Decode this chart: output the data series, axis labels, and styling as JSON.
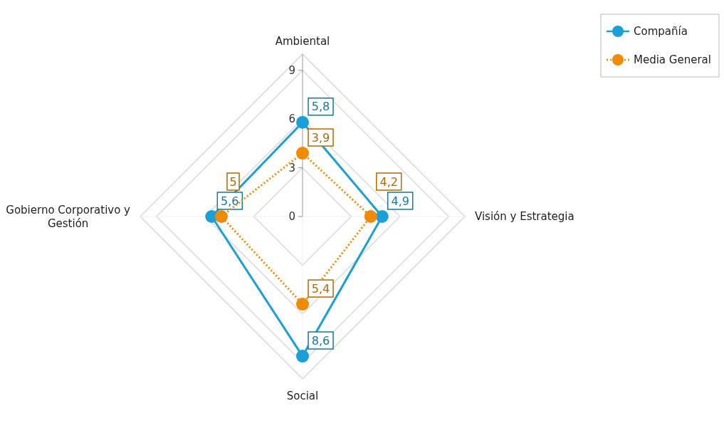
{
  "chart_data": {
    "type": "radar",
    "categories": [
      "Ambiental",
      "Visión y Estrategia",
      "Social",
      "Gobierno Corporativo y Gestión"
    ],
    "series": [
      {
        "name": "Compañía",
        "color": "#1a9fd9",
        "values": [
          5.8,
          4.9,
          8.6,
          5.6
        ],
        "value_labels": [
          "5,8",
          "4,9",
          "8,6",
          "5,6"
        ],
        "line_style": "solid"
      },
      {
        "name": "Media General",
        "color": "#f08a00",
        "values": [
          3.9,
          4.2,
          5.4,
          5
        ],
        "value_labels": [
          "3,9",
          "4,2",
          "5,4",
          "5"
        ],
        "line_style": "dotted"
      }
    ],
    "ylim": [
      0,
      10
    ],
    "yticks": [
      0,
      3,
      6,
      9
    ],
    "grid": true,
    "legend": "top right",
    "marker": "circle"
  }
}
